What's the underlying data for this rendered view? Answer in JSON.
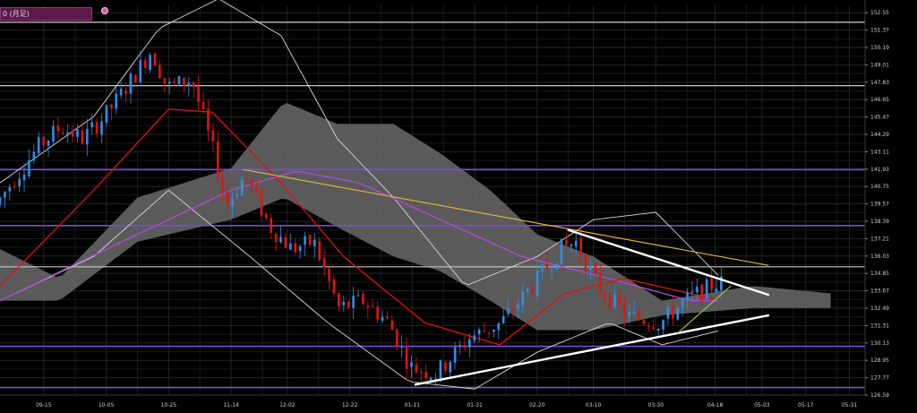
{
  "header": {
    "label": "0 (月足)"
  },
  "colors": {
    "background": "#000000",
    "grid": "#262626",
    "up": "#2f8fe8",
    "down": "#e31212",
    "bollinger": "#d8d8d8",
    "ma_red": "#e01010",
    "ma_purple": "#b44ad8",
    "cloud": "#6a6a6a",
    "level_white": "#c8c8c8",
    "level_purple": "#7b4ae0",
    "trend_yellow": "#e0b040",
    "trend_white": "#ffffff",
    "trend_green": "#8fc840"
  },
  "chart_data": {
    "type": "candlestick",
    "title": "",
    "xlabel": "",
    "ylabel": "",
    "ylim": [
      126.59,
      153.05
    ],
    "x_ticks": [
      "09-15",
      "10-05",
      "10-25",
      "11-14",
      "12-02",
      "12-22",
      "01-11",
      "01-31",
      "02-20",
      "03-10",
      "03-30",
      "04-18",
      "05-03",
      "05-17",
      "05-31"
    ],
    "y_ticks": [
      152.55,
      151.37,
      150.19,
      149.01,
      147.83,
      146.65,
      145.47,
      144.29,
      143.11,
      141.93,
      140.75,
      139.57,
      138.39,
      137.21,
      136.03,
      134.85,
      133.67,
      132.49,
      131.31,
      130.13,
      128.95,
      127.77,
      126.59
    ],
    "date_range": [
      "2022-09-01",
      "2023-06-05"
    ],
    "horizontal_levels": [
      {
        "price": 151.9,
        "color": "white"
      },
      {
        "price": 147.6,
        "color": "white"
      },
      {
        "price": 141.9,
        "color": "purple"
      },
      {
        "price": 138.1,
        "color": "purple"
      },
      {
        "price": 135.3,
        "color": "white"
      },
      {
        "price": 129.9,
        "color": "purple"
      },
      {
        "price": 127.1,
        "color": "purple"
      }
    ],
    "trendlines": [
      {
        "color": "yellow",
        "from": [
          "2022-11-18",
          141.9
        ],
        "to": [
          "2023-05-05",
          135.4
        ]
      },
      {
        "color": "white",
        "from": [
          "2023-03-02",
          137.8
        ],
        "to": [
          "2023-05-05",
          133.4
        ]
      },
      {
        "color": "white",
        "from": [
          "2023-01-12",
          127.3
        ],
        "to": [
          "2023-05-05",
          132.0
        ]
      },
      {
        "color": "green",
        "from": [
          "2023-04-06",
          130.8
        ],
        "to": [
          "2023-04-23",
          134.0
        ]
      }
    ],
    "candles_anchor": [
      [
        "2022-09-01",
        139.5
      ],
      [
        "2022-09-08",
        141.5
      ],
      [
        "2022-09-15",
        143.5
      ],
      [
        "2022-09-22",
        144.8
      ],
      [
        "2022-09-29",
        144.0
      ],
      [
        "2022-10-06",
        145.5
      ],
      [
        "2022-10-13",
        147.5
      ],
      [
        "2022-10-21",
        150.0
      ],
      [
        "2022-10-26",
        147.5
      ],
      [
        "2022-11-03",
        148.0
      ],
      [
        "2022-11-10",
        143.0
      ],
      [
        "2022-11-14",
        139.5
      ],
      [
        "2022-11-20",
        141.5
      ],
      [
        "2022-11-28",
        138.0
      ],
      [
        "2022-12-05",
        136.5
      ],
      [
        "2022-12-12",
        137.0
      ],
      [
        "2022-12-20",
        132.5
      ],
      [
        "2022-12-28",
        133.0
      ],
      [
        "2023-01-05",
        131.5
      ],
      [
        "2023-01-12",
        128.5
      ],
      [
        "2023-01-20",
        128.0
      ],
      [
        "2023-01-31",
        130.5
      ],
      [
        "2023-02-10",
        131.5
      ],
      [
        "2023-02-20",
        134.0
      ],
      [
        "2023-03-01",
        136.5
      ],
      [
        "2023-03-06",
        137.0
      ],
      [
        "2023-03-13",
        134.0
      ],
      [
        "2023-03-22",
        132.0
      ],
      [
        "2023-04-02",
        131.5
      ],
      [
        "2023-04-10",
        133.0
      ],
      [
        "2023-04-20",
        134.2
      ]
    ],
    "bollinger_upper_anchor": [
      [
        "2022-09-01",
        141.0
      ],
      [
        "2022-10-01",
        145.5
      ],
      [
        "2022-10-22",
        151.5
      ],
      [
        "2022-11-10",
        153.5
      ],
      [
        "2022-11-30",
        151.0
      ],
      [
        "2022-12-18",
        144.0
      ],
      [
        "2023-01-05",
        140.0
      ],
      [
        "2023-01-28",
        134.0
      ],
      [
        "2023-02-20",
        136.0
      ],
      [
        "2023-03-10",
        138.5
      ],
      [
        "2023-03-30",
        139.0
      ],
      [
        "2023-04-20",
        134.5
      ]
    ],
    "bollinger_lower_anchor": [
      [
        "2022-09-01",
        133.0
      ],
      [
        "2022-10-01",
        136.0
      ],
      [
        "2022-10-25",
        140.5
      ],
      [
        "2022-11-20",
        136.0
      ],
      [
        "2022-12-15",
        131.5
      ],
      [
        "2023-01-10",
        127.5
      ],
      [
        "2023-01-31",
        127.0
      ],
      [
        "2023-02-20",
        129.5
      ],
      [
        "2023-03-15",
        131.5
      ],
      [
        "2023-04-01",
        130.0
      ],
      [
        "2023-04-20",
        131.0
      ]
    ],
    "ma_red_anchor": [
      [
        "2022-09-01",
        134.0
      ],
      [
        "2022-10-01",
        140.5
      ],
      [
        "2022-10-25",
        146.0
      ],
      [
        "2022-11-08",
        145.8
      ],
      [
        "2022-11-30",
        141.0
      ],
      [
        "2022-12-20",
        136.0
      ],
      [
        "2023-01-15",
        131.5
      ],
      [
        "2023-02-08",
        130.0
      ],
      [
        "2023-03-01",
        133.5
      ],
      [
        "2023-03-20",
        134.5
      ],
      [
        "2023-04-20",
        133.0
      ]
    ],
    "ma_purple_anchor": [
      [
        "2022-09-01",
        133.0
      ],
      [
        "2022-10-10",
        137.0
      ],
      [
        "2022-11-14",
        140.5
      ],
      [
        "2022-12-05",
        141.8
      ],
      [
        "2022-12-25",
        141.0
      ],
      [
        "2023-01-20",
        138.5
      ],
      [
        "2023-02-15",
        136.0
      ],
      [
        "2023-03-15",
        134.5
      ],
      [
        "2023-04-10",
        133.0
      ],
      [
        "2023-04-20",
        133.0
      ]
    ],
    "cloud_upper_anchor": [
      [
        "2022-09-01",
        136.5
      ],
      [
        "2022-09-20",
        134.5
      ],
      [
        "2022-10-15",
        140.0
      ],
      [
        "2022-11-14",
        142.0
      ],
      [
        "2022-12-01",
        146.5
      ],
      [
        "2022-12-18",
        145.0
      ],
      [
        "2023-01-05",
        145.0
      ],
      [
        "2023-01-20",
        143.0
      ],
      [
        "2023-02-05",
        140.5
      ],
      [
        "2023-02-20",
        137.5
      ],
      [
        "2023-03-10",
        136.0
      ],
      [
        "2023-04-01",
        133.0
      ],
      [
        "2023-04-30",
        134.0
      ],
      [
        "2023-05-25",
        133.5
      ]
    ],
    "cloud_lower_anchor": [
      [
        "2022-09-01",
        133.0
      ],
      [
        "2022-09-20",
        133.0
      ],
      [
        "2022-10-15",
        137.0
      ],
      [
        "2022-11-14",
        138.5
      ],
      [
        "2022-12-01",
        140.0
      ],
      [
        "2022-12-18",
        138.0
      ],
      [
        "2023-01-05",
        136.0
      ],
      [
        "2023-01-20",
        135.0
      ],
      [
        "2023-02-05",
        133.0
      ],
      [
        "2023-02-20",
        131.0
      ],
      [
        "2023-03-10",
        131.0
      ],
      [
        "2023-04-01",
        132.0
      ],
      [
        "2023-04-30",
        132.5
      ],
      [
        "2023-05-25",
        132.5
      ]
    ]
  }
}
